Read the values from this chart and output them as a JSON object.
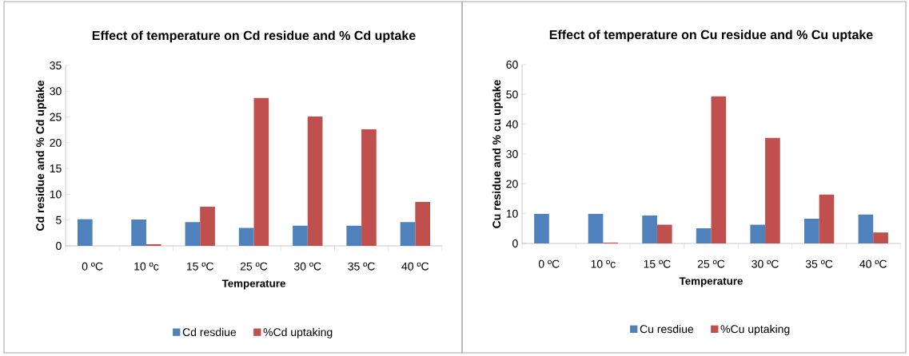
{
  "chart_data": [
    {
      "type": "bar",
      "title": "Effect of temperature on Cd residue and % Cd uptake",
      "xlabel": "Temperature",
      "ylabel": "Cd residue and % Cd uptake",
      "categories": [
        "0 ºC",
        "10 ºc",
        "15 ºC",
        "25 ºC",
        "30 ºC",
        "35 ºC",
        "40 ºC"
      ],
      "series": [
        {
          "name": "Cd resdiue",
          "color": "#4f81bd",
          "values": [
            5.2,
            5.1,
            4.6,
            3.5,
            3.9,
            3.9,
            4.6
          ]
        },
        {
          "name": "%Cd uptaking",
          "color": "#c0504d",
          "values": [
            0,
            0.3,
            7.6,
            28.7,
            25.1,
            22.6,
            8.5
          ]
        }
      ],
      "ylim": [
        0,
        35
      ],
      "yticks": [
        0,
        5,
        10,
        15,
        20,
        25,
        30,
        35
      ],
      "legend": "bottom"
    },
    {
      "type": "bar",
      "title": "Effect of temperature on Cu residue and % Cu uptake",
      "xlabel": "Temperature",
      "ylabel": "Cu residue and % cu uptake",
      "categories": [
        "0 ºC",
        "10 ºc",
        "15 ºC",
        "25 ºC",
        "30 ºC",
        "35 ºC",
        "40 ºC"
      ],
      "series": [
        {
          "name": "Cu resdiue",
          "color": "#4f81bd",
          "values": [
            10.0,
            10.0,
            9.4,
            5.1,
            6.3,
            8.3,
            9.7
          ]
        },
        {
          "name": "%Cu uptaking",
          "color": "#c0504d",
          "values": [
            0,
            0.3,
            6.3,
            49.4,
            35.4,
            16.4,
            3.7
          ]
        }
      ],
      "ylim": [
        0,
        60
      ],
      "yticks": [
        0,
        10,
        20,
        30,
        40,
        50,
        60
      ],
      "legend": "bottom"
    }
  ]
}
